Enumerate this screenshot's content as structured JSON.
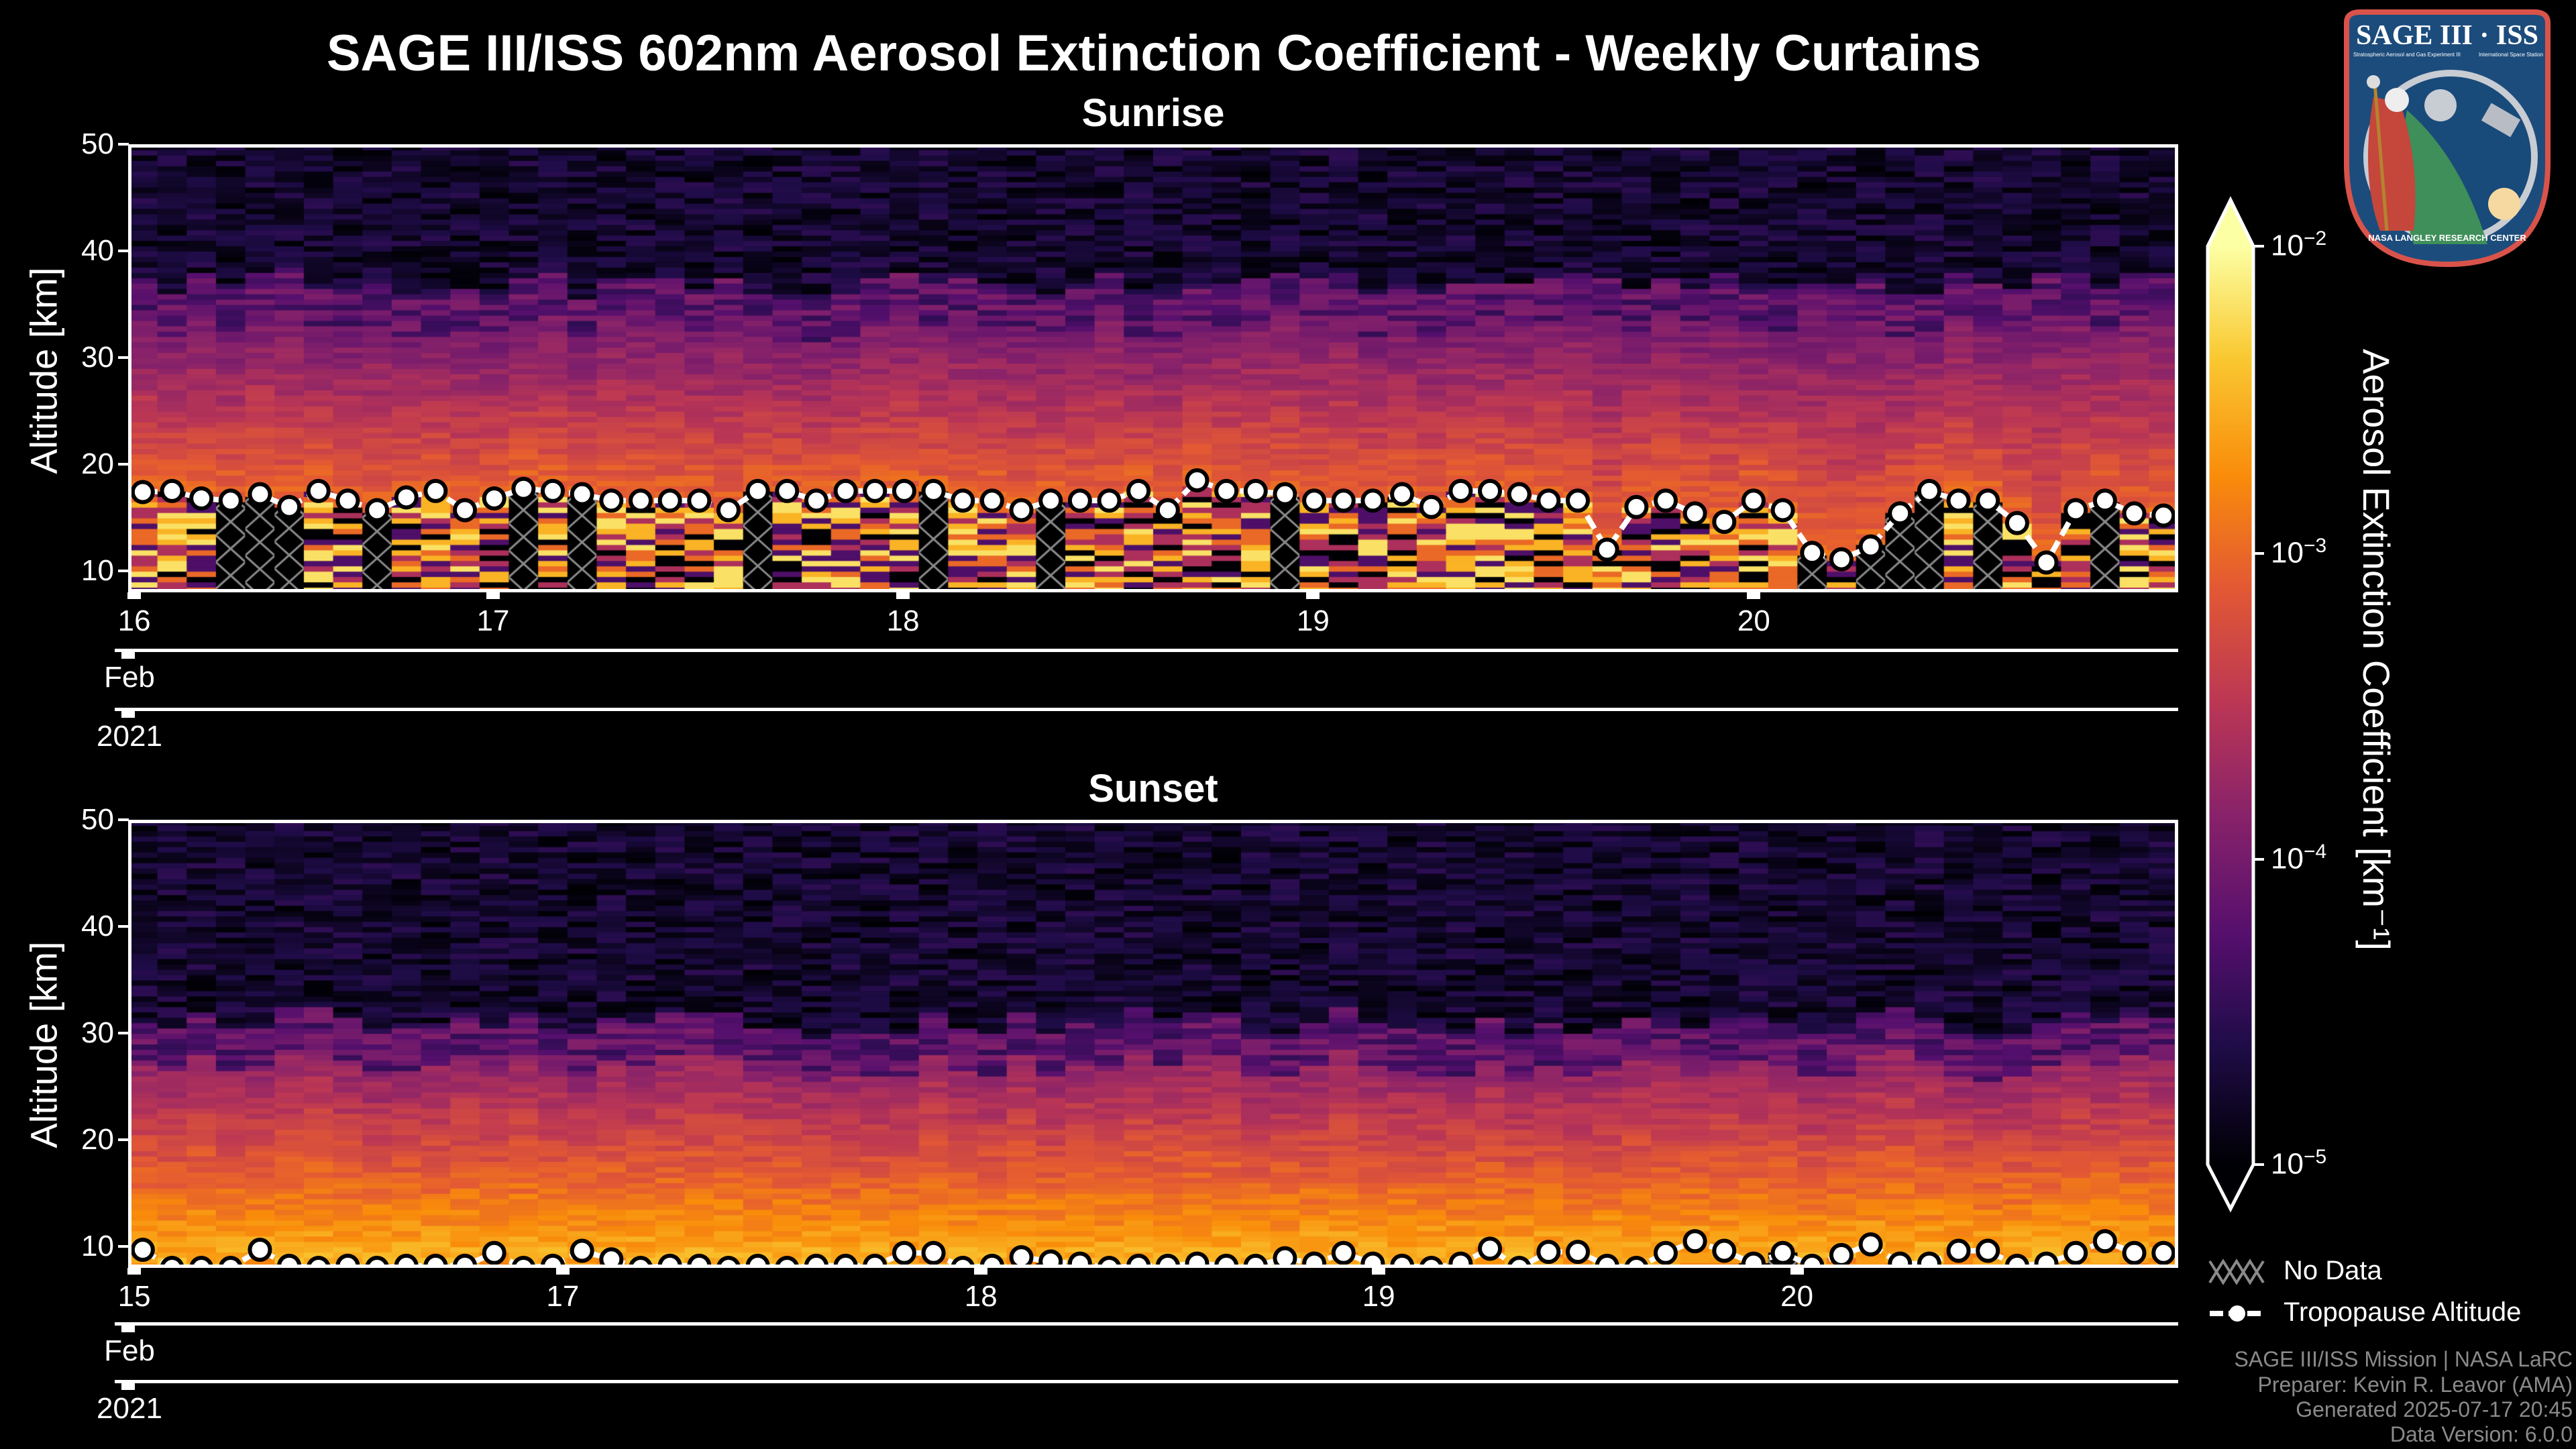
{
  "title": "SAGE III/ISS 602nm Aerosol Extinction Coefficient - Weekly Curtains",
  "logo": {
    "text": "SAGE III · ISS",
    "subtitle_left": "Stratospheric Aerosol and Gas Experiment III",
    "subtitle_right": "International Space Station",
    "ring_text": "BALL · NASA LANGLEY RESEARCH CENTER · TAS-I · ESA"
  },
  "chart_data": [
    {
      "type": "heatmap",
      "title": "Sunrise",
      "ylabel": "Altitude [km]",
      "ylim": [
        8,
        50
      ],
      "yticks": [
        "50",
        "40",
        "30",
        "20",
        "10"
      ],
      "xticks": [
        "16",
        "17",
        "18",
        "19",
        "20"
      ],
      "month_label": "Feb",
      "year_label": "2021",
      "aerosol_top_km": 33,
      "tropopause_km": [
        17.4,
        17.5,
        16.8,
        16.6,
        17.2,
        16.0,
        17.5,
        16.6,
        15.7,
        16.9,
        17.5,
        15.7,
        16.8,
        17.7,
        17.5,
        17.2,
        16.6,
        16.6,
        16.6,
        16.6,
        15.7,
        17.5,
        17.5,
        16.6,
        17.5,
        17.5,
        17.5,
        17.5,
        16.6,
        16.6,
        15.7,
        16.6,
        16.6,
        16.6,
        17.5,
        15.7,
        18.5,
        17.5,
        17.5,
        17.2,
        16.6,
        16.6,
        16.6,
        17.2,
        16.0,
        17.5,
        17.5,
        17.2,
        16.6,
        16.6,
        12.0,
        16.0,
        16.6,
        15.4,
        14.6,
        16.6,
        15.7,
        11.7,
        11.1,
        12.3,
        15.4,
        17.5,
        16.6,
        16.6,
        14.5,
        10.8,
        15.7,
        16.6,
        15.4,
        15.2
      ]
    },
    {
      "type": "heatmap",
      "title": "Sunset",
      "ylabel": "Altitude [km]",
      "ylim": [
        8,
        50
      ],
      "yticks": [
        "50",
        "40",
        "30",
        "20",
        "10"
      ],
      "xticks": [
        "15",
        "17",
        "18",
        "19",
        "20"
      ],
      "month_label": "Feb",
      "year_label": "2021",
      "aerosol_top_km": 27,
      "tropopause_km": [
        9.7,
        8.0,
        8.0,
        8.0,
        9.7,
        8.2,
        8.0,
        8.2,
        8.0,
        8.2,
        8.2,
        8.2,
        9.4,
        8.0,
        8.2,
        9.6,
        8.8,
        8.0,
        8.2,
        8.2,
        8.0,
        8.2,
        8.0,
        8.2,
        8.2,
        8.2,
        9.4,
        9.4,
        8.0,
        8.2,
        9.0,
        8.6,
        8.4,
        8.0,
        8.2,
        8.2,
        8.4,
        8.2,
        8.2,
        8.9,
        8.4,
        9.4,
        8.4,
        8.2,
        8.0,
        8.4,
        9.8,
        8.0,
        9.5,
        9.5,
        8.2,
        8.0,
        9.4,
        10.5,
        9.6,
        8.4,
        9.4,
        8.2,
        9.2,
        10.2,
        8.4,
        8.4,
        9.6,
        9.6,
        8.2,
        8.4,
        9.4,
        10.5,
        9.4,
        9.4
      ]
    }
  ],
  "colorbar": {
    "label": "Aerosol Extinction Coefficient [km⁻¹]",
    "colormap": "inferno",
    "range_log10": [
      -5,
      -2
    ],
    "ticks": [
      {
        "base": "10",
        "exp": "−2"
      },
      {
        "base": "10",
        "exp": "−3"
      },
      {
        "base": "10",
        "exp": "−4"
      },
      {
        "base": "10",
        "exp": "−5"
      }
    ]
  },
  "legend": {
    "no_data": "No Data",
    "tropopause": "Tropopause Altitude"
  },
  "footer": [
    "SAGE III/ISS Mission | NASA LaRC",
    "Preparer: Kevin R. Leavor (AMA)",
    "Generated 2025-07-17 20:45",
    "Data Version: 6.0.0"
  ],
  "colors": {
    "background": "#000000",
    "nodata_hatch": "#8a8a8a",
    "tropopause": "#ffffff"
  }
}
